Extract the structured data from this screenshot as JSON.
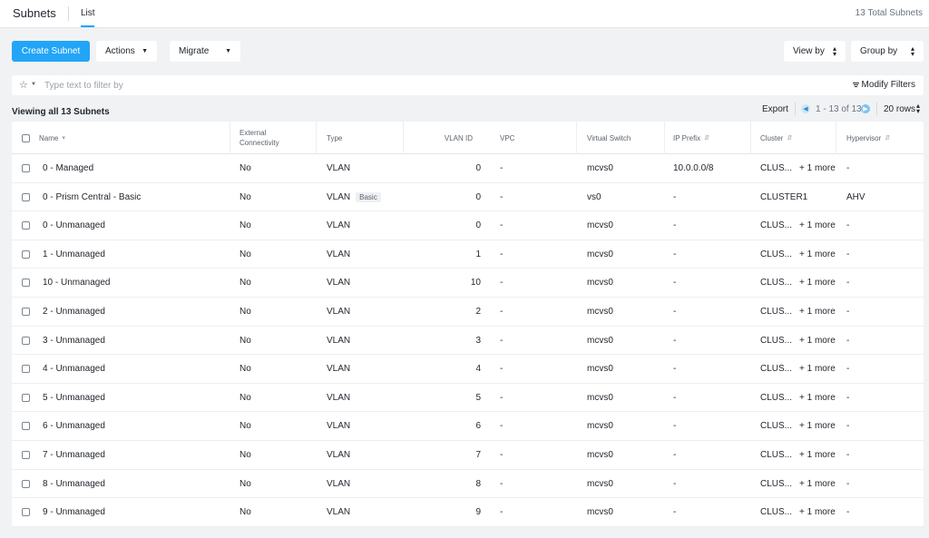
{
  "header": {
    "title": "Subnets",
    "tab": "List",
    "total": "13 Total Subnets"
  },
  "toolbar": {
    "create": "Create Subnet",
    "actions": "Actions",
    "migrate": "Migrate",
    "view_by": "View by",
    "group_by": "Group by"
  },
  "filter": {
    "placeholder": "Type text to filter by",
    "modify": "Modify Filters"
  },
  "summary": {
    "viewing": "Viewing all 13 Subnets"
  },
  "pagination": {
    "export": "Export",
    "range": "1 - 13 of 13",
    "rows": "20 rows"
  },
  "columns": [
    "Name",
    "External Connectivity",
    "Type",
    "VLAN ID",
    "VPC",
    "Virtual Switch",
    "IP Prefix",
    "Cluster",
    "Hypervisor"
  ],
  "rows": [
    {
      "name": "0 - Managed",
      "ext": "No",
      "type": "VLAN",
      "badge": "",
      "vlan": "0",
      "vpc": "-",
      "vswitch": "mcvs0",
      "ip": "10.0.0.0/8",
      "cluster": "CLUS...",
      "more": "+ 1 more",
      "hyper": "-"
    },
    {
      "name": "0 - Prism Central - Basic",
      "ext": "No",
      "type": "VLAN",
      "badge": "Basic",
      "vlan": "0",
      "vpc": "-",
      "vswitch": "vs0",
      "ip": "-",
      "cluster": "CLUSTER1",
      "more": "",
      "hyper": "AHV"
    },
    {
      "name": "0 - Unmanaged",
      "ext": "No",
      "type": "VLAN",
      "badge": "",
      "vlan": "0",
      "vpc": "-",
      "vswitch": "mcvs0",
      "ip": "-",
      "cluster": "CLUS...",
      "more": "+ 1 more",
      "hyper": "-"
    },
    {
      "name": "1 - Unmanaged",
      "ext": "No",
      "type": "VLAN",
      "badge": "",
      "vlan": "1",
      "vpc": "-",
      "vswitch": "mcvs0",
      "ip": "-",
      "cluster": "CLUS...",
      "more": "+ 1 more",
      "hyper": "-"
    },
    {
      "name": "10 - Unmanaged",
      "ext": "No",
      "type": "VLAN",
      "badge": "",
      "vlan": "10",
      "vpc": "-",
      "vswitch": "mcvs0",
      "ip": "-",
      "cluster": "CLUS...",
      "more": "+ 1 more",
      "hyper": "-"
    },
    {
      "name": "2 - Unmanaged",
      "ext": "No",
      "type": "VLAN",
      "badge": "",
      "vlan": "2",
      "vpc": "-",
      "vswitch": "mcvs0",
      "ip": "-",
      "cluster": "CLUS...",
      "more": "+ 1 more",
      "hyper": "-"
    },
    {
      "name": "3 - Unmanaged",
      "ext": "No",
      "type": "VLAN",
      "badge": "",
      "vlan": "3",
      "vpc": "-",
      "vswitch": "mcvs0",
      "ip": "-",
      "cluster": "CLUS...",
      "more": "+ 1 more",
      "hyper": "-"
    },
    {
      "name": "4 - Unmanaged",
      "ext": "No",
      "type": "VLAN",
      "badge": "",
      "vlan": "4",
      "vpc": "-",
      "vswitch": "mcvs0",
      "ip": "-",
      "cluster": "CLUS...",
      "more": "+ 1 more",
      "hyper": "-"
    },
    {
      "name": "5 - Unmanaged",
      "ext": "No",
      "type": "VLAN",
      "badge": "",
      "vlan": "5",
      "vpc": "-",
      "vswitch": "mcvs0",
      "ip": "-",
      "cluster": "CLUS...",
      "more": "+ 1 more",
      "hyper": "-"
    },
    {
      "name": "6 - Unmanaged",
      "ext": "No",
      "type": "VLAN",
      "badge": "",
      "vlan": "6",
      "vpc": "-",
      "vswitch": "mcvs0",
      "ip": "-",
      "cluster": "CLUS...",
      "more": "+ 1 more",
      "hyper": "-"
    },
    {
      "name": "7 - Unmanaged",
      "ext": "No",
      "type": "VLAN",
      "badge": "",
      "vlan": "7",
      "vpc": "-",
      "vswitch": "mcvs0",
      "ip": "-",
      "cluster": "CLUS...",
      "more": "+ 1 more",
      "hyper": "-"
    },
    {
      "name": "8 - Unmanaged",
      "ext": "No",
      "type": "VLAN",
      "badge": "",
      "vlan": "8",
      "vpc": "-",
      "vswitch": "mcvs0",
      "ip": "-",
      "cluster": "CLUS...",
      "more": "+ 1 more",
      "hyper": "-"
    },
    {
      "name": "9 - Unmanaged",
      "ext": "No",
      "type": "VLAN",
      "badge": "",
      "vlan": "9",
      "vpc": "-",
      "vswitch": "mcvs0",
      "ip": "-",
      "cluster": "CLUS...",
      "more": "+ 1 more",
      "hyper": "-"
    }
  ],
  "colors": {
    "accent": "#22a5f7",
    "background": "#f1f2f4"
  }
}
